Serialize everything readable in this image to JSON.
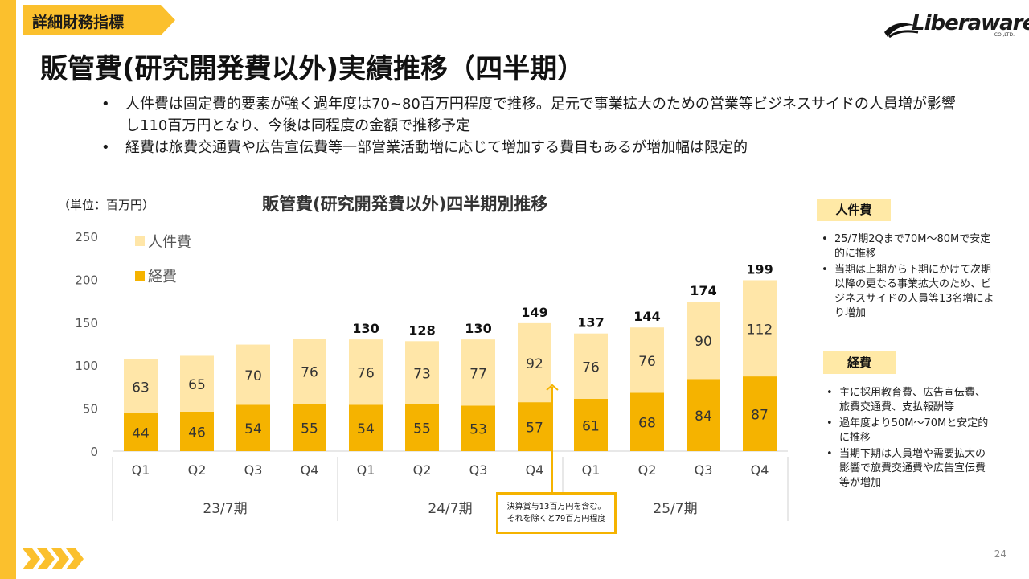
{
  "section_tag": "詳細財務指標",
  "logo": {
    "text": "Liberaware",
    "sub": "CO.,LTD."
  },
  "title": "販管費(研究開発費以外)実績推移（四半期）",
  "bullets": [
    "人件費は固定費的要素が強く過年度は70~80百万円程度で推移。足元で事業拡大のための営業等ビジネスサイドの人員増が影響し110百万円となり、今後は同程度の金額で推移予定",
    "経費は旅費交通費や広告宣伝費等一部営業活動増に応じて増加する費目もあるが増加幅は限定的"
  ],
  "unit_label": "（単位：百万円）",
  "chart_data": {
    "type": "bar",
    "stacked": true,
    "title": "販管費(研究開発費以外)四半期別推移",
    "categories": [
      "Q1",
      "Q2",
      "Q3",
      "Q4",
      "Q1",
      "Q2",
      "Q3",
      "Q4",
      "Q1",
      "Q2",
      "Q3",
      "Q4"
    ],
    "groups": [
      {
        "label": "23/7期",
        "start": 0,
        "end": 3
      },
      {
        "label": "24/7期",
        "start": 4,
        "end": 7
      },
      {
        "label": "25/7期",
        "start": 8,
        "end": 11
      }
    ],
    "series": [
      {
        "name": "経費",
        "color": "#F5B300",
        "values": [
          44,
          46,
          54,
          55,
          54,
          55,
          53,
          57,
          61,
          68,
          84,
          87
        ]
      },
      {
        "name": "人件費",
        "color": "#FFE6A8",
        "values": [
          63,
          65,
          70,
          76,
          76,
          73,
          77,
          92,
          76,
          76,
          90,
          112
        ]
      }
    ],
    "totals": [
      null,
      null,
      null,
      null,
      "130",
      "128",
      "130",
      "149",
      "137",
      "144",
      "174",
      "199"
    ],
    "ylim": [
      0,
      250
    ],
    "yticks": [
      0,
      50,
      100,
      150,
      200,
      250
    ],
    "legend": "top-left",
    "grid": false
  },
  "note": {
    "lines": [
      "決算賞与13百万円を含む。",
      "それを除くと79百万円程度"
    ]
  },
  "side": {
    "personnel": {
      "head": "人件費",
      "items": [
        "25/7期2Qまで70M～80Mで安定的に推移",
        "当期は上期から下期にかけて次期以降の更なる事業拡大のため、ビジネスサイドの人員等13名増により増加"
      ]
    },
    "expenses": {
      "head": "経費",
      "items": [
        "主に採用教育費、広告宣伝費、旅費交通費、支払報酬等",
        "過年度より50M～70Mと安定的に推移",
        "当期下期は人員増や需要拡大の影響で旅費交通費や広告宣伝費等が増加"
      ]
    }
  },
  "page_number": "24",
  "colors": {
    "accent": "#FBC02D",
    "expense": "#F5B300",
    "personnel": "#FFE6A8"
  }
}
